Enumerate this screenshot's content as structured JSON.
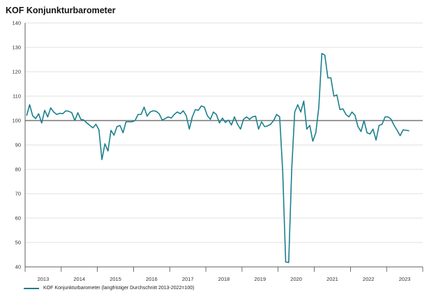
{
  "chart_data": {
    "type": "line",
    "title": "KOF Konjunkturbarometer",
    "xlabel": "",
    "ylabel": "",
    "ylim": [
      40,
      140
    ],
    "yticks": [
      40,
      50,
      60,
      70,
      80,
      90,
      100,
      110,
      120,
      130,
      140
    ],
    "reference_line": 100,
    "x_categories": [
      "2013",
      "2014",
      "2015",
      "2016",
      "2017",
      "2018",
      "2019",
      "2020",
      "2021",
      "2022",
      "2023"
    ],
    "grid": "horizontal",
    "legend_position": "bottom-left",
    "line_color": "#1a7f8e",
    "series": [
      {
        "name": "KOF Konjunkturbarometer (langfristiger Durchschnitt 2013-2022=100)",
        "start": "2013-01",
        "frequency": "monthly",
        "values": [
          102,
          106.5,
          102,
          100.8,
          102.8,
          99,
          104.2,
          101.5,
          105.2,
          103.5,
          102.5,
          103,
          102.8,
          104,
          103.8,
          103.2,
          100,
          103.2,
          100.5,
          100.2,
          99,
          98,
          97,
          98.5,
          96.2,
          84,
          90.5,
          87.5,
          96,
          94,
          97.5,
          98,
          95,
          99.5,
          99.5,
          99.5,
          100,
          102.5,
          102.5,
          105.5,
          101.8,
          103.5,
          104,
          103.8,
          102.8,
          100.2,
          100.8,
          101.5,
          101,
          102.5,
          103.5,
          102.8,
          104,
          102,
          96.5,
          101.5,
          104.5,
          104.2,
          106,
          105.5,
          102,
          100.5,
          103.5,
          102.5,
          99,
          101,
          99.2,
          100.2,
          98.2,
          101.5,
          98.5,
          96.5,
          100.5,
          101.5,
          100.5,
          101.5,
          101.8,
          96.5,
          99.5,
          97.5,
          97.8,
          98.5,
          100,
          102.5,
          101.5,
          79.5,
          42,
          41.8,
          80,
          103.5,
          106.5,
          103.5,
          108,
          96.5,
          98,
          91.5,
          95,
          105.5,
          127.5,
          126.8,
          117.5,
          117.5,
          110,
          110.5,
          104.5,
          104.8,
          102.5,
          101.5,
          103.5,
          102.2,
          97.5,
          95.5,
          100,
          95,
          94.5,
          96.5,
          92,
          98,
          98.5,
          101.5,
          101.5,
          100.5,
          98,
          96,
          93.8,
          96.2,
          96,
          95.8
        ]
      }
    ]
  }
}
